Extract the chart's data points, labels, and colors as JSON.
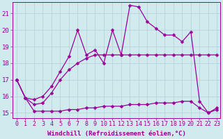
{
  "xlabel": "Windchill (Refroidissement éolien,°C)",
  "background_color": "#d0eaed",
  "line_color": "#990099",
  "grid_color": "#b8d8dc",
  "xmin": -0.5,
  "xmax": 23.4,
  "ymin": 14.7,
  "ymax": 21.7,
  "xticks": [
    0,
    1,
    2,
    3,
    4,
    5,
    6,
    7,
    8,
    9,
    10,
    11,
    12,
    13,
    14,
    15,
    16,
    17,
    18,
    19,
    20,
    21,
    22,
    23
  ],
  "yticks": [
    15,
    16,
    17,
    18,
    19,
    20,
    21
  ],
  "series1_x": [
    0,
    1,
    2,
    3,
    4,
    5,
    6,
    7,
    8,
    9,
    10,
    11,
    12,
    13,
    14,
    15,
    16,
    17,
    18,
    19,
    20,
    21,
    22,
    23
  ],
  "series1_y": [
    17.0,
    15.9,
    15.1,
    15.1,
    15.1,
    15.1,
    15.2,
    15.2,
    15.3,
    15.3,
    15.4,
    15.4,
    15.4,
    15.5,
    15.5,
    15.5,
    15.6,
    15.6,
    15.6,
    15.7,
    15.7,
    15.3,
    15.0,
    15.2
  ],
  "series2_x": [
    0,
    1,
    2,
    3,
    4,
    5,
    6,
    7,
    8,
    9,
    10,
    11,
    12,
    13,
    14,
    15,
    16,
    17,
    18,
    19,
    20,
    21,
    22,
    23
  ],
  "series2_y": [
    17.0,
    15.9,
    15.5,
    15.6,
    16.2,
    17.0,
    17.6,
    18.0,
    18.3,
    18.5,
    18.5,
    18.5,
    18.5,
    18.5,
    18.5,
    18.5,
    18.5,
    18.5,
    18.5,
    18.5,
    18.5,
    18.5,
    18.5,
    18.5
  ],
  "series3_x": [
    0,
    1,
    2,
    3,
    4,
    5,
    6,
    7,
    8,
    9,
    10,
    11,
    12,
    13,
    14,
    15,
    16,
    17,
    18,
    19,
    20,
    21,
    22,
    23
  ],
  "series3_y": [
    17.0,
    15.9,
    15.8,
    16.0,
    16.6,
    17.5,
    18.4,
    20.0,
    18.5,
    18.8,
    18.0,
    20.0,
    18.5,
    21.5,
    21.4,
    20.5,
    20.1,
    19.7,
    19.7,
    19.3,
    19.9,
    15.7,
    15.0,
    15.3
  ],
  "marker_size": 2.5,
  "linewidth": 0.9,
  "font_size": 6.5
}
